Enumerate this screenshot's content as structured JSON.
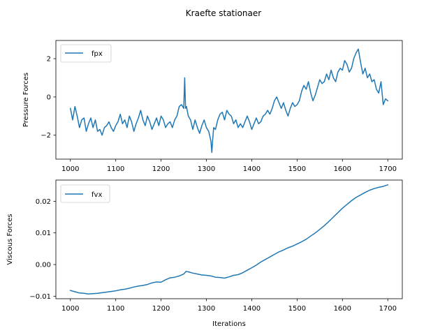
{
  "figure": {
    "title": "Kraefte stationaer",
    "line_color": "#1f77b4"
  },
  "chart_data": [
    {
      "type": "line",
      "ylabel": "Pressure Forces",
      "xlabel": "",
      "xlim": [
        968,
        1732
      ],
      "ylim": [
        -3.25,
        2.95
      ],
      "xticks": [
        1000,
        1100,
        1200,
        1300,
        1400,
        1500,
        1600,
        1700
      ],
      "xtick_labels": [
        "1000",
        "1100",
        "1200",
        "1300",
        "1400",
        "1500",
        "1600",
        "1700"
      ],
      "yticks": [
        -2,
        0,
        2
      ],
      "ytick_labels": [
        "−2",
        "0",
        "2"
      ],
      "legend": {
        "placement": "upper-left"
      },
      "grid": false,
      "series": [
        {
          "name": "fpx",
          "x": [
            1000,
            1005,
            1010,
            1015,
            1020,
            1025,
            1030,
            1035,
            1040,
            1045,
            1050,
            1055,
            1060,
            1065,
            1070,
            1075,
            1080,
            1085,
            1090,
            1095,
            1100,
            1105,
            1110,
            1115,
            1120,
            1125,
            1130,
            1135,
            1140,
            1145,
            1150,
            1155,
            1160,
            1165,
            1170,
            1175,
            1180,
            1185,
            1190,
            1195,
            1200,
            1205,
            1210,
            1215,
            1220,
            1225,
            1230,
            1235,
            1240,
            1245,
            1250,
            1252,
            1254,
            1256,
            1260,
            1265,
            1270,
            1275,
            1280,
            1285,
            1290,
            1295,
            1300,
            1305,
            1310,
            1312,
            1314,
            1316,
            1320,
            1325,
            1330,
            1335,
            1340,
            1345,
            1350,
            1355,
            1360,
            1365,
            1370,
            1375,
            1380,
            1385,
            1390,
            1395,
            1400,
            1405,
            1410,
            1415,
            1420,
            1425,
            1430,
            1435,
            1440,
            1445,
            1450,
            1455,
            1460,
            1465,
            1470,
            1475,
            1480,
            1485,
            1490,
            1495,
            1500,
            1505,
            1510,
            1515,
            1520,
            1525,
            1530,
            1535,
            1540,
            1545,
            1550,
            1555,
            1560,
            1565,
            1570,
            1575,
            1580,
            1585,
            1590,
            1595,
            1600,
            1605,
            1610,
            1615,
            1620,
            1625,
            1630,
            1635,
            1640,
            1645,
            1650,
            1655,
            1660,
            1665,
            1670,
            1675,
            1680,
            1685,
            1690,
            1695,
            1700
          ],
          "y": [
            -0.6,
            -1.2,
            -0.5,
            -1.0,
            -1.6,
            -1.2,
            -1.1,
            -1.8,
            -1.4,
            -1.1,
            -1.6,
            -1.2,
            -1.8,
            -1.7,
            -2.0,
            -1.6,
            -1.5,
            -1.3,
            -1.6,
            -1.8,
            -1.5,
            -1.3,
            -0.9,
            -1.4,
            -1.2,
            -1.6,
            -1.0,
            -1.3,
            -1.8,
            -1.4,
            -1.1,
            -0.7,
            -1.2,
            -1.5,
            -1.0,
            -1.3,
            -1.7,
            -1.4,
            -1.1,
            -1.5,
            -1.0,
            -1.2,
            -1.6,
            -1.4,
            -1.3,
            -1.6,
            -1.2,
            -1.0,
            -0.5,
            -0.4,
            -0.6,
            1.0,
            -0.6,
            -0.5,
            -1.0,
            -1.2,
            -1.7,
            -1.2,
            -1.6,
            -1.9,
            -1.5,
            -1.2,
            -1.6,
            -1.8,
            -2.3,
            -2.9,
            -2.2,
            -1.6,
            -1.7,
            -1.2,
            -0.9,
            -0.8,
            -1.2,
            -0.7,
            -0.9,
            -1.0,
            -1.4,
            -1.2,
            -1.6,
            -1.4,
            -1.6,
            -1.3,
            -1.0,
            -1.3,
            -1.7,
            -1.4,
            -1.1,
            -1.4,
            -1.3,
            -1.0,
            -0.9,
            -0.7,
            -0.9,
            -0.6,
            -0.2,
            0.0,
            -0.3,
            -0.6,
            -0.3,
            -0.7,
            -1.0,
            -0.6,
            -0.3,
            -0.5,
            -0.4,
            -0.2,
            0.3,
            0.6,
            0.4,
            0.8,
            0.2,
            -0.2,
            0.1,
            0.5,
            0.9,
            0.7,
            0.8,
            1.2,
            0.9,
            1.4,
            1.0,
            0.8,
            1.3,
            1.5,
            1.4,
            1.9,
            1.7,
            1.3,
            1.5,
            2.0,
            2.3,
            2.5,
            1.8,
            1.2,
            1.5,
            1.0,
            1.2,
            0.8,
            0.9,
            0.4,
            0.2,
            0.8,
            -0.4,
            -0.1,
            -0.2
          ]
        }
      ]
    },
    {
      "type": "line",
      "ylabel": "Viscous Forces",
      "xlabel": "Iterations",
      "xlim": [
        968,
        1732
      ],
      "ylim": [
        -0.0108,
        0.0267
      ],
      "xticks": [
        1000,
        1100,
        1200,
        1300,
        1400,
        1500,
        1600,
        1700
      ],
      "xtick_labels": [
        "1000",
        "1100",
        "1200",
        "1300",
        "1400",
        "1500",
        "1600",
        "1700"
      ],
      "yticks": [
        -0.01,
        0.0,
        0.01,
        0.02
      ],
      "ytick_labels": [
        "−0.01",
        "0.00",
        "0.01",
        "0.02"
      ],
      "legend": {
        "placement": "upper-left"
      },
      "grid": false,
      "series": [
        {
          "name": "fvx",
          "x": [
            1000,
            1010,
            1020,
            1030,
            1040,
            1050,
            1060,
            1070,
            1080,
            1090,
            1100,
            1110,
            1120,
            1130,
            1140,
            1150,
            1160,
            1170,
            1180,
            1190,
            1200,
            1210,
            1220,
            1230,
            1240,
            1250,
            1255,
            1260,
            1270,
            1280,
            1290,
            1300,
            1310,
            1320,
            1330,
            1340,
            1350,
            1360,
            1370,
            1380,
            1390,
            1400,
            1410,
            1420,
            1430,
            1440,
            1450,
            1460,
            1470,
            1480,
            1490,
            1500,
            1510,
            1520,
            1530,
            1540,
            1550,
            1560,
            1570,
            1580,
            1590,
            1600,
            1610,
            1620,
            1630,
            1640,
            1650,
            1660,
            1670,
            1680,
            1690,
            1700
          ],
          "y": [
            -0.0082,
            -0.0086,
            -0.009,
            -0.0091,
            -0.0093,
            -0.0092,
            -0.0091,
            -0.0089,
            -0.0087,
            -0.0085,
            -0.0083,
            -0.008,
            -0.0078,
            -0.0075,
            -0.0071,
            -0.0068,
            -0.0066,
            -0.0063,
            -0.0058,
            -0.0055,
            -0.0056,
            -0.0048,
            -0.0042,
            -0.004,
            -0.0036,
            -0.003,
            -0.0022,
            -0.0023,
            -0.0027,
            -0.003,
            -0.0033,
            -0.0034,
            -0.0036,
            -0.004,
            -0.0041,
            -0.0043,
            -0.0039,
            -0.0034,
            -0.0032,
            -0.0026,
            -0.0018,
            -0.001,
            -0.0002,
            0.0008,
            0.0016,
            0.0024,
            0.0032,
            0.004,
            0.0046,
            0.0053,
            0.0058,
            0.0065,
            0.0072,
            0.008,
            0.009,
            0.01,
            0.0111,
            0.0123,
            0.0136,
            0.015,
            0.0164,
            0.0178,
            0.019,
            0.0202,
            0.0212,
            0.022,
            0.0228,
            0.0235,
            0.024,
            0.0244,
            0.0247,
            0.0252
          ]
        }
      ]
    }
  ]
}
